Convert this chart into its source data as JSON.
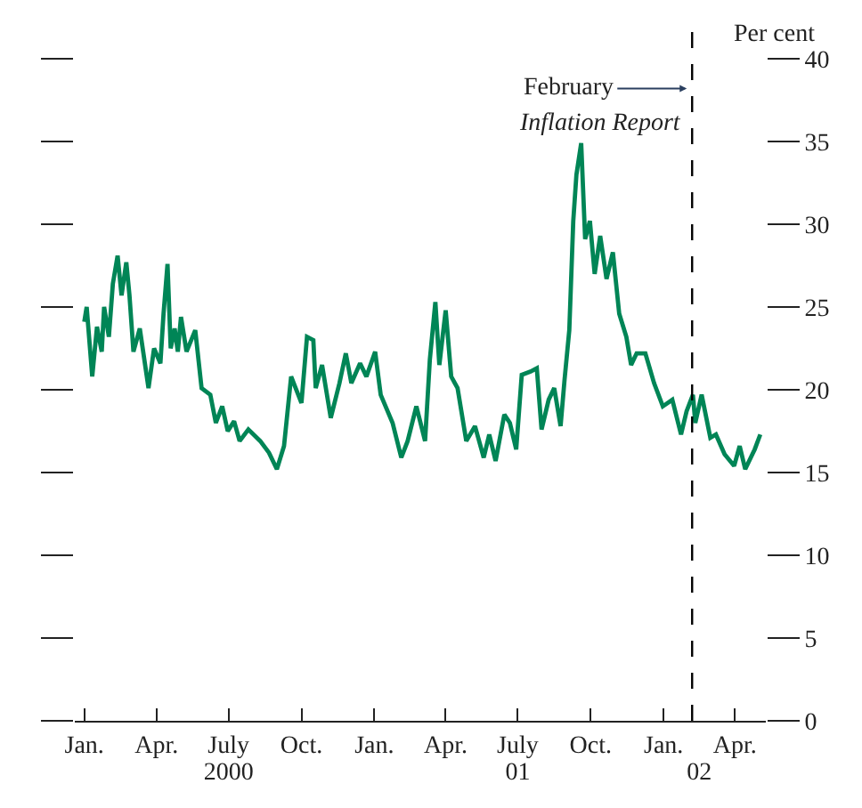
{
  "chart_data": {
    "type": "line",
    "ylabel": "Per cent",
    "marker": "none",
    "line_style": "solid",
    "x": [
      "2000-01-01",
      "2000-01-04",
      "2000-01-11",
      "2000-01-17",
      "2000-01-23",
      "2000-01-26",
      "2000-02-01",
      "2000-02-06",
      "2000-02-12",
      "2000-02-17",
      "2000-02-23",
      "2000-02-27",
      "2000-03-03",
      "2000-03-11",
      "2000-03-22",
      "2000-03-29",
      "2000-04-06",
      "2000-04-10",
      "2000-04-15",
      "2000-04-19",
      "2000-04-24",
      "2000-04-28",
      "2000-05-02",
      "2000-05-09",
      "2000-05-20",
      "2000-05-28",
      "2000-06-08",
      "2000-06-15",
      "2000-06-23",
      "2000-06-30",
      "2000-07-08",
      "2000-07-15",
      "2000-07-26",
      "2000-08-10",
      "2000-08-21",
      "2000-08-31",
      "2000-09-09",
      "2000-09-18",
      "2000-10-01",
      "2000-10-08",
      "2000-10-16",
      "2000-10-19",
      "2000-10-27",
      "2000-11-07",
      "2000-11-18",
      "2000-11-26",
      "2000-12-03",
      "2000-12-14",
      "2000-12-22",
      "2001-01-02",
      "2001-01-09",
      "2001-01-24",
      "2001-02-04",
      "2001-02-12",
      "2001-02-23",
      "2001-03-06",
      "2001-03-12",
      "2001-03-19",
      "2001-03-24",
      "2001-04-01",
      "2001-04-08",
      "2001-04-16",
      "2001-04-27",
      "2001-05-08",
      "2001-05-19",
      "2001-05-26",
      "2001-06-03",
      "2001-06-14",
      "2001-06-21",
      "2001-06-29",
      "2001-07-06",
      "2001-07-17",
      "2001-07-25",
      "2001-07-31",
      "2001-08-09",
      "2001-08-16",
      "2001-08-24",
      "2001-08-29",
      "2001-09-04",
      "2001-09-09",
      "2001-09-13",
      "2001-09-19",
      "2001-09-24",
      "2001-09-30",
      "2001-10-06",
      "2001-10-13",
      "2001-10-21",
      "2001-10-29",
      "2001-11-06",
      "2001-11-15",
      "2001-11-21",
      "2001-11-28",
      "2001-12-09",
      "2001-12-20",
      "2001-12-31",
      "2002-01-12",
      "2002-01-23",
      "2002-01-30",
      "2002-02-07",
      "2002-02-10",
      "2002-02-18",
      "2002-03-01",
      "2002-03-08",
      "2002-03-19",
      "2002-03-31",
      "2002-04-07",
      "2002-04-14",
      "2002-04-26",
      "2002-05-03"
    ],
    "series": [
      {
        "color": "#008556",
        "values": [
          24.1,
          25.0,
          20.8,
          23.8,
          22.3,
          25.0,
          23.2,
          26.4,
          28.1,
          25.7,
          27.7,
          25.7,
          22.3,
          23.7,
          20.1,
          22.5,
          21.6,
          24.6,
          27.6,
          22.5,
          23.7,
          22.3,
          24.4,
          22.3,
          23.6,
          20.1,
          19.7,
          18.0,
          19.0,
          17.5,
          18.1,
          16.9,
          17.6,
          16.9,
          16.2,
          15.2,
          16.6,
          20.8,
          19.2,
          23.2,
          23.0,
          20.1,
          21.5,
          18.3,
          20.4,
          22.2,
          20.4,
          21.6,
          20.8,
          22.3,
          19.7,
          18.0,
          15.9,
          16.9,
          19.0,
          16.9,
          21.8,
          25.3,
          21.5,
          24.8,
          20.8,
          20.1,
          16.9,
          17.8,
          15.9,
          17.3,
          15.7,
          18.5,
          18.0,
          16.4,
          20.9,
          21.1,
          21.3,
          17.6,
          19.4,
          20.1,
          17.8,
          20.6,
          23.6,
          30.2,
          33.0,
          34.9,
          29.1,
          30.2,
          27.0,
          29.3,
          26.7,
          28.3,
          24.6,
          23.2,
          21.5,
          22.2,
          22.2,
          20.4,
          19.0,
          19.4,
          17.3,
          18.7,
          19.7,
          18.0,
          19.7,
          17.1,
          17.3,
          16.1,
          15.4,
          16.6,
          15.2,
          16.4,
          17.3
        ]
      }
    ],
    "xlim": [
      "1999-12-20",
      "2002-05-10"
    ],
    "xticks": [
      {
        "value": "2000-01-01",
        "label": "Jan."
      },
      {
        "value": "2000-04-01",
        "label": "Apr."
      },
      {
        "value": "2000-07-01",
        "label": "July"
      },
      {
        "value": "2000-10-01",
        "label": "Oct."
      },
      {
        "value": "2001-01-01",
        "label": "Jan."
      },
      {
        "value": "2001-04-01",
        "label": "Apr."
      },
      {
        "value": "2001-07-01",
        "label": "July"
      },
      {
        "value": "2001-10-01",
        "label": "Oct."
      },
      {
        "value": "2002-01-01",
        "label": "Jan."
      },
      {
        "value": "2002-04-01",
        "label": "Apr."
      }
    ],
    "x2lim": [
      "1999-12-20",
      "2002-05-10"
    ],
    "x2ticks": [
      {
        "value": "2000-07-01",
        "label": "2000"
      },
      {
        "value": "2001-07-01",
        "label": "01"
      },
      {
        "value": "2002-02-15",
        "label": "02"
      }
    ],
    "ylim": [
      0,
      40
    ],
    "yticks": [
      0,
      5,
      10,
      15,
      20,
      25,
      30,
      35,
      40
    ],
    "ref_lines": [
      {
        "axis": "x",
        "value": "2002-02-06",
        "label": "February\nInflation Report",
        "color": "#000000",
        "line_style": "dashed"
      }
    ]
  }
}
